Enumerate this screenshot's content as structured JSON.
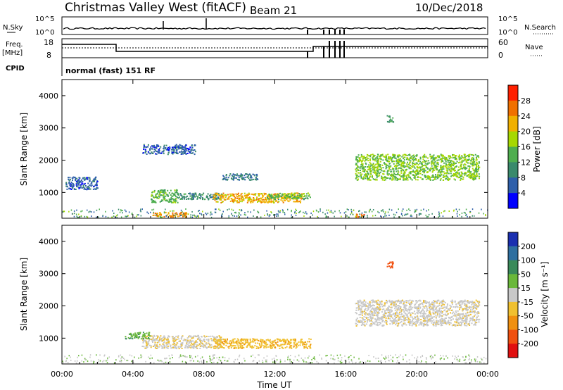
{
  "header": {
    "title": "Christmas Valley West (fitACF)",
    "beam": "Beam 21",
    "date": "10/Dec/2018"
  },
  "noise_panel": {
    "left_label": "N.Sky",
    "left_ticks": [
      "10^5",
      "10^0"
    ],
    "right_ticks": [
      "10^5",
      "10^0"
    ],
    "right_label": "N.Search"
  },
  "freq_panel": {
    "left_label_1": "Freq.",
    "left_label_2": "[MHz]",
    "left_ticks": [
      "18",
      "8"
    ],
    "right_ticks": [
      "60",
      "0"
    ],
    "right_label": "Nave"
  },
  "cpid": {
    "label": "CPID",
    "value": "normal (fast) 151 RF"
  },
  "colors": {
    "power_scale": [
      "#0000ff",
      "#2e5faa",
      "#3a8a6c",
      "#4fae4f",
      "#a6d800",
      "#f0b000",
      "#f07000",
      "#ff2000"
    ],
    "velocity_scale": [
      "#1a2fb0",
      "#2e6fa0",
      "#3a8a5a",
      "#6ab83a",
      "#c8c8c8",
      "#f0c030",
      "#f09010",
      "#f05010",
      "#e01010"
    ]
  },
  "chart_data": [
    {
      "type": "heatmap",
      "quantity": "power",
      "xlabel": "Time UT",
      "ylabel": "Slant Range [km]",
      "x_ticks": [
        "00:00",
        "04:00",
        "08:00",
        "12:00",
        "16:00",
        "20:00",
        "00:00"
      ],
      "y_ticks": [
        1000,
        2000,
        3000,
        4000
      ],
      "ylim": [
        200,
        4500
      ],
      "xlim_hours": [
        0,
        24
      ],
      "colorbar_label": "Power [dB]",
      "colorbar_ticks": [
        4,
        8,
        12,
        16,
        20,
        24,
        28
      ],
      "features": [
        {
          "t": [
            0.2,
            2.0
          ],
          "range": [
            1100,
            1500
          ],
          "level": 6
        },
        {
          "t": [
            5.0,
            6.5
          ],
          "range": [
            700,
            1100
          ],
          "level": 14
        },
        {
          "t": [
            6.5,
            9.0
          ],
          "range": [
            800,
            1000
          ],
          "level": 10
        },
        {
          "t": [
            8.5,
            13.5
          ],
          "range": [
            700,
            1000
          ],
          "level": 22
        },
        {
          "t": [
            11.5,
            14.0
          ],
          "range": [
            800,
            1000
          ],
          "level": 14
        },
        {
          "t": [
            9.0,
            11.0
          ],
          "range": [
            1400,
            1600
          ],
          "level": 8
        },
        {
          "t": [
            4.5,
            7.5
          ],
          "range": [
            2200,
            2500
          ],
          "level": 6
        },
        {
          "t": [
            16.5,
            23.5
          ],
          "range": [
            1400,
            2200
          ],
          "level": 16
        },
        {
          "t": [
            18.3,
            18.7
          ],
          "range": [
            3200,
            3400
          ],
          "level": 12
        },
        {
          "t": [
            5.0,
            7.0
          ],
          "range": [
            250,
            400
          ],
          "level": 24
        },
        {
          "t": [
            16.5,
            17.0
          ],
          "range": [
            250,
            350
          ],
          "level": 26
        }
      ]
    },
    {
      "type": "heatmap",
      "quantity": "velocity",
      "xlabel": "Time UT",
      "ylabel": "Slant Range [km]",
      "x_ticks": [
        "00:00",
        "04:00",
        "08:00",
        "12:00",
        "16:00",
        "20:00",
        "00:00"
      ],
      "y_ticks": [
        1000,
        2000,
        3000,
        4000
      ],
      "ylim": [
        200,
        4500
      ],
      "xlim_hours": [
        0,
        24
      ],
      "colorbar_label": "Velocity [m s⁻¹]",
      "colorbar_ticks": [
        200,
        100,
        50,
        15,
        -15,
        -50,
        -100,
        -200
      ],
      "features": [
        {
          "t": [
            4.5,
            9.0
          ],
          "range": [
            700,
            1100
          ],
          "value": -10
        },
        {
          "t": [
            8.5,
            14.0
          ],
          "range": [
            700,
            1000
          ],
          "value": -40
        },
        {
          "t": [
            3.5,
            5.0
          ],
          "range": [
            1000,
            1200
          ],
          "value": 40
        },
        {
          "t": [
            16.5,
            23.5
          ],
          "range": [
            1400,
            2200
          ],
          "value": -5
        },
        {
          "t": [
            18.3,
            18.7
          ],
          "range": [
            3200,
            3400
          ],
          "value": -180
        }
      ]
    }
  ]
}
